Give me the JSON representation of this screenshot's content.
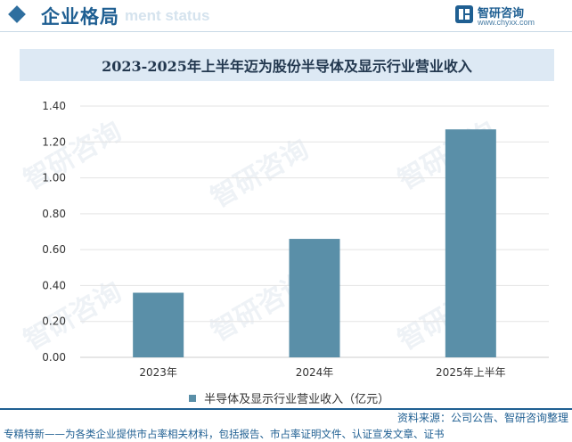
{
  "header": {
    "title": "企业格局",
    "subtitle": "ment status",
    "logo_name": "智研咨询",
    "logo_url": "www.chyxx.com",
    "accent_color": "#1f5f92"
  },
  "watermark_text": "智研咨询",
  "chart_data": {
    "type": "bar",
    "title": "2023-2025年上半年迈为股份半导体及显示行业营业收入",
    "categories": [
      "2023年",
      "2024年",
      "2025年上半年"
    ],
    "series": [
      {
        "name": "半导体及显示行业营业收入（亿元）",
        "values": [
          0.36,
          0.66,
          1.27
        ],
        "color": "#5a8fa8"
      }
    ],
    "ylim": [
      0,
      1.4
    ],
    "yticks": [
      "0.00",
      "0.20",
      "0.40",
      "0.60",
      "0.80",
      "1.00",
      "1.20",
      "1.40"
    ],
    "grid": true,
    "legend_position": "bottom",
    "xlabel": "",
    "ylabel": ""
  },
  "footer": {
    "source": "资料来源：公司公告、智研咨询整理",
    "note": "专精特新——为各类企业提供市占率相关材料，包括报告、市占率证明文件、认证宣发文章、证书"
  }
}
